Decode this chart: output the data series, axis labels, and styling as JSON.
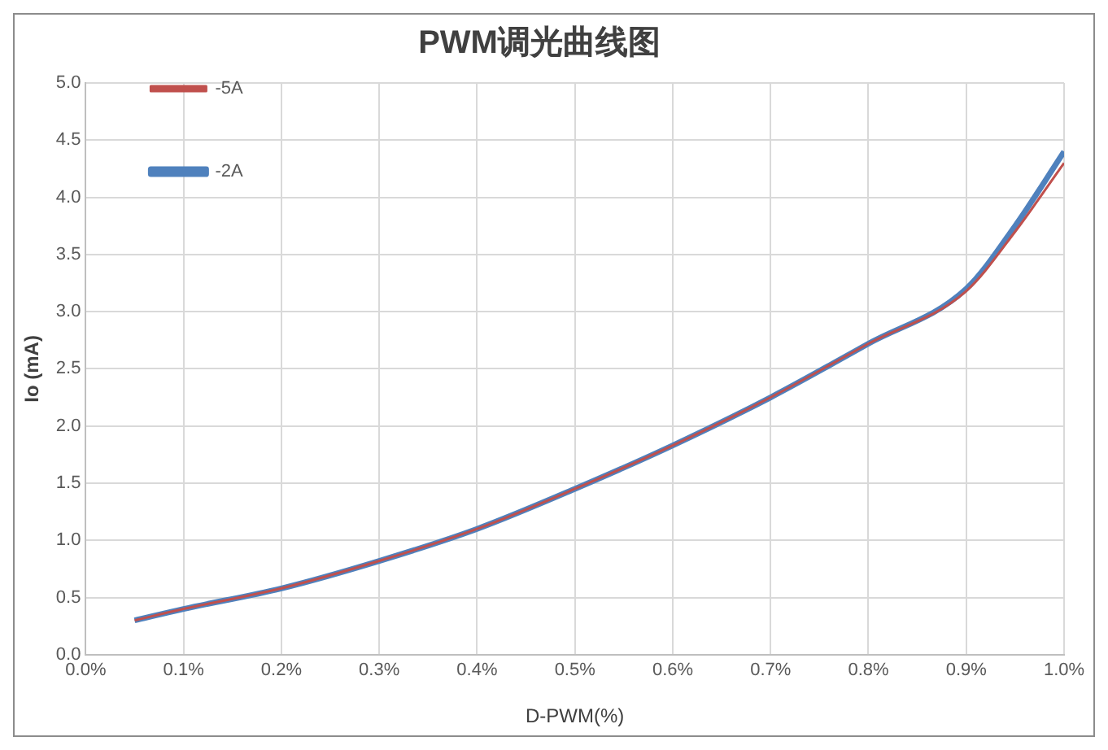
{
  "chart_data": {
    "type": "line",
    "title": "PWM调光曲线图",
    "xlabel": "D-PWM(%)",
    "ylabel": "Io (mA)",
    "x": [
      0.05,
      0.1,
      0.2,
      0.3,
      0.4,
      0.5,
      0.6,
      0.7,
      0.8,
      0.9,
      0.95,
      1.0
    ],
    "series": [
      {
        "name": "-2A",
        "color": "#4f81bd",
        "values": [
          0.3,
          0.4,
          0.58,
          0.82,
          1.1,
          1.45,
          1.83,
          2.25,
          2.72,
          3.2,
          3.75,
          4.4
        ]
      },
      {
        "name": "-5A",
        "color": "#c0504d",
        "values": [
          0.3,
          0.4,
          0.58,
          0.82,
          1.1,
          1.45,
          1.83,
          2.25,
          2.72,
          3.18,
          3.7,
          4.3
        ]
      }
    ],
    "xlim": [
      0,
      1
    ],
    "xticks": [
      {
        "value": 0,
        "label": "0.0%"
      },
      {
        "value": 0.1,
        "label": "0.1%"
      },
      {
        "value": 0.2,
        "label": "0.2%"
      },
      {
        "value": 0.3,
        "label": "0.3%"
      },
      {
        "value": 0.4,
        "label": "0.4%"
      },
      {
        "value": 0.5,
        "label": "0.5%"
      },
      {
        "value": 0.6,
        "label": "0.6%"
      },
      {
        "value": 0.7,
        "label": "0.7%"
      },
      {
        "value": 0.8,
        "label": "0.8%"
      },
      {
        "value": 0.9,
        "label": "0.9%"
      },
      {
        "value": 1,
        "label": "1.0%"
      }
    ],
    "ylim": [
      0,
      5
    ],
    "yticks": [
      {
        "value": 0,
        "label": "0.0"
      },
      {
        "value": 0.5,
        "label": "0.5"
      },
      {
        "value": 1,
        "label": "1.0"
      },
      {
        "value": 1.5,
        "label": "1.5"
      },
      {
        "value": 2,
        "label": "2.0"
      },
      {
        "value": 2.5,
        "label": "2.5"
      },
      {
        "value": 3,
        "label": "3.0"
      },
      {
        "value": 3.5,
        "label": "3.5"
      },
      {
        "value": 4,
        "label": "4.0"
      },
      {
        "value": 4.5,
        "label": "4.5"
      },
      {
        "value": 5,
        "label": "5.0"
      }
    ],
    "grid": true,
    "legend": "top left",
    "marker": "none",
    "line_style": "solid"
  }
}
